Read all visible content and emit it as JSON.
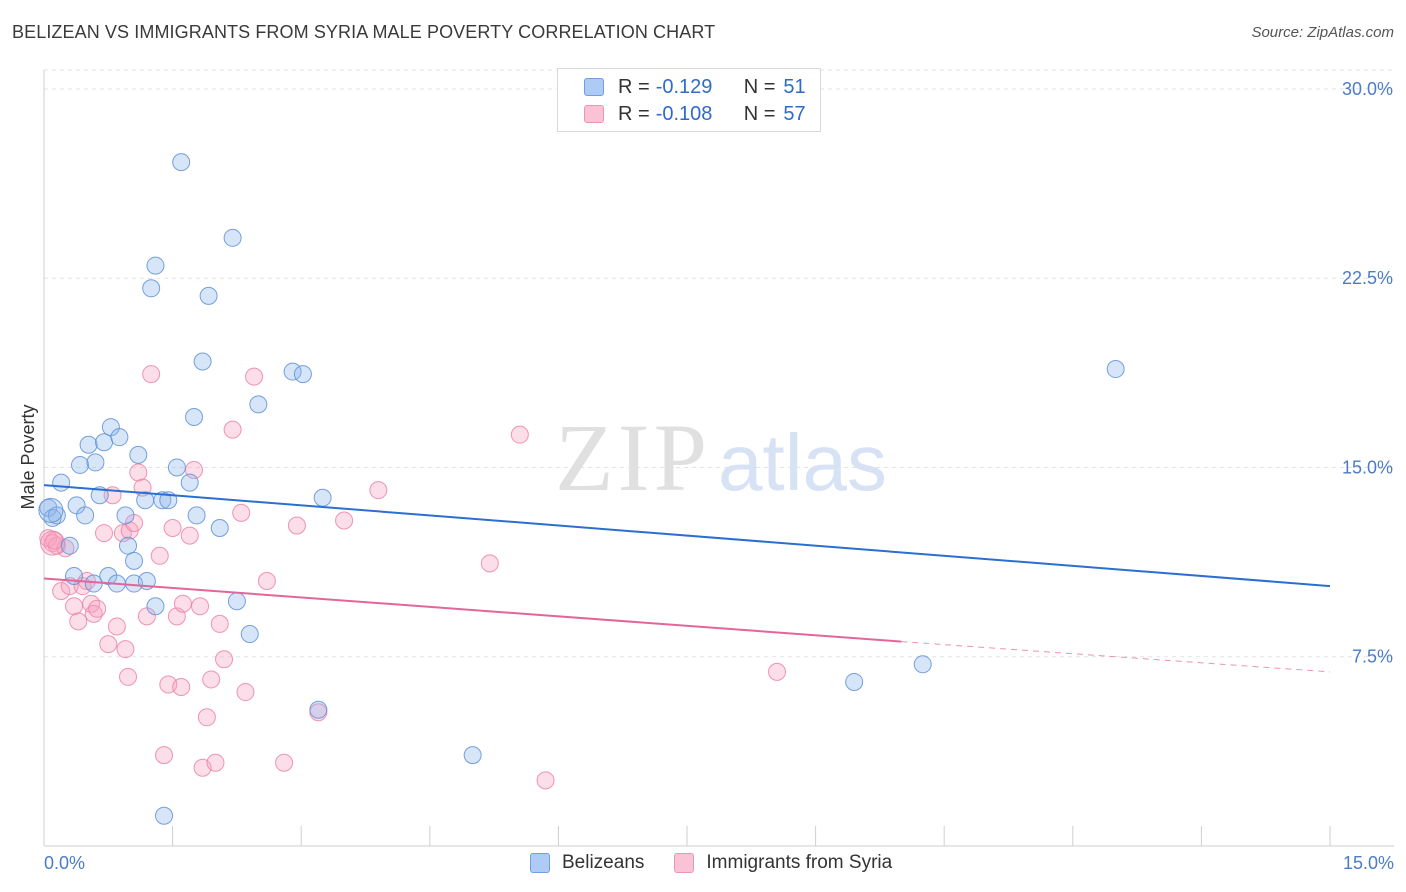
{
  "title": "BELIZEAN VS IMMIGRANTS FROM SYRIA MALE POVERTY CORRELATION CHART",
  "source": "Source: ZipAtlas.com",
  "watermark": {
    "zip": "ZIP",
    "atlas": "atlas"
  },
  "legend": {
    "r_label": "R =",
    "n_label": "N =",
    "rows": [
      {
        "r": "-0.129",
        "n": "51",
        "fill": "#aecbf5",
        "stroke": "#6f9fe0"
      },
      {
        "r": "-0.108",
        "n": "57",
        "fill": "#f9c3d5",
        "stroke": "#ee94b3"
      }
    ]
  },
  "bottom_legend": {
    "series1": "Belizeans",
    "series2": "Immigrants from Syria"
  },
  "chart_data": {
    "type": "scatter",
    "title": "BELIZEAN VS IMMIGRANTS FROM SYRIA MALE POVERTY CORRELATION CHART",
    "xlabel": "",
    "ylabel": "Male Poverty",
    "xlim": [
      0,
      15
    ],
    "ylim": [
      0,
      30.75
    ],
    "x_tick_labels": [
      "0.0%",
      "15.0%"
    ],
    "y_ticks": [
      7.5,
      15.0,
      22.5,
      30.0
    ],
    "y_tick_labels": [
      "7.5%",
      "15.0%",
      "22.5%",
      "30.0%"
    ],
    "colors": {
      "blue": "#5b93e0",
      "blue_line": "#2b6fd0",
      "pink": "#f29bbb",
      "pink_line": "#e2669a",
      "tick": "#4a7cc7"
    },
    "series": [
      {
        "name": "Belizeans",
        "trend": {
          "x0": 0.0,
          "y0": 14.3,
          "x1": 15.0,
          "y1": 10.3
        },
        "points": [
          [
            0.05,
            13.4
          ],
          [
            0.1,
            13.0
          ],
          [
            0.15,
            13.1
          ],
          [
            0.2,
            14.4
          ],
          [
            0.3,
            11.9
          ],
          [
            0.35,
            10.7
          ],
          [
            0.38,
            13.5
          ],
          [
            0.42,
            15.1
          ],
          [
            0.48,
            13.1
          ],
          [
            0.52,
            15.9
          ],
          [
            0.58,
            10.4
          ],
          [
            0.6,
            15.2
          ],
          [
            0.65,
            13.9
          ],
          [
            0.7,
            16.0
          ],
          [
            0.75,
            10.7
          ],
          [
            0.78,
            16.6
          ],
          [
            0.85,
            10.4
          ],
          [
            0.88,
            16.2
          ],
          [
            0.95,
            13.1
          ],
          [
            0.98,
            11.9
          ],
          [
            1.05,
            10.4
          ],
          [
            1.05,
            11.3
          ],
          [
            1.1,
            15.5
          ],
          [
            1.18,
            13.7
          ],
          [
            1.2,
            10.5
          ],
          [
            1.25,
            22.1
          ],
          [
            1.3,
            9.5
          ],
          [
            1.3,
            23.0
          ],
          [
            1.38,
            13.7
          ],
          [
            1.45,
            13.7
          ],
          [
            1.55,
            15.0
          ],
          [
            1.6,
            27.1
          ],
          [
            1.7,
            14.4
          ],
          [
            1.75,
            17.0
          ],
          [
            1.78,
            13.1
          ],
          [
            1.85,
            19.2
          ],
          [
            1.92,
            21.8
          ],
          [
            2.05,
            12.6
          ],
          [
            2.2,
            24.1
          ],
          [
            2.25,
            9.7
          ],
          [
            2.4,
            8.4
          ],
          [
            2.5,
            17.5
          ],
          [
            2.9,
            18.8
          ],
          [
            3.02,
            18.7
          ],
          [
            3.2,
            5.4
          ],
          [
            3.25,
            13.8
          ],
          [
            5.0,
            3.6
          ],
          [
            9.45,
            6.5
          ],
          [
            10.25,
            7.2
          ],
          [
            12.5,
            18.9
          ],
          [
            1.4,
            1.2
          ]
        ]
      },
      {
        "name": "Immigrants from Syria",
        "trend": {
          "x0": 0.0,
          "y0": 10.6,
          "x1": 10.0,
          "y1": 8.1,
          "dash_x1": 15.0,
          "dash_y1": 6.9
        },
        "points": [
          [
            0.05,
            12.2
          ],
          [
            0.1,
            12.0
          ],
          [
            0.15,
            11.9
          ],
          [
            0.2,
            10.1
          ],
          [
            0.25,
            11.8
          ],
          [
            0.3,
            10.3
          ],
          [
            0.35,
            9.5
          ],
          [
            0.4,
            8.9
          ],
          [
            0.45,
            10.3
          ],
          [
            0.5,
            10.5
          ],
          [
            0.55,
            9.6
          ],
          [
            0.58,
            9.2
          ],
          [
            0.62,
            9.4
          ],
          [
            0.7,
            12.4
          ],
          [
            0.75,
            8.0
          ],
          [
            0.8,
            13.9
          ],
          [
            0.85,
            8.7
          ],
          [
            0.92,
            12.4
          ],
          [
            0.95,
            7.8
          ],
          [
            0.98,
            6.7
          ],
          [
            1.0,
            12.5
          ],
          [
            1.05,
            12.8
          ],
          [
            1.1,
            14.8
          ],
          [
            1.15,
            14.2
          ],
          [
            1.2,
            9.1
          ],
          [
            1.25,
            18.7
          ],
          [
            1.35,
            11.5
          ],
          [
            1.4,
            3.6
          ],
          [
            1.45,
            6.4
          ],
          [
            1.5,
            12.6
          ],
          [
            1.55,
            9.1
          ],
          [
            1.6,
            6.3
          ],
          [
            1.62,
            9.6
          ],
          [
            1.7,
            12.3
          ],
          [
            1.75,
            14.9
          ],
          [
            1.82,
            9.5
          ],
          [
            1.85,
            3.1
          ],
          [
            1.9,
            5.1
          ],
          [
            1.95,
            6.6
          ],
          [
            2.0,
            3.3
          ],
          [
            2.05,
            8.8
          ],
          [
            2.1,
            7.4
          ],
          [
            2.2,
            16.5
          ],
          [
            2.3,
            13.2
          ],
          [
            2.35,
            6.1
          ],
          [
            2.45,
            18.6
          ],
          [
            2.6,
            10.5
          ],
          [
            2.8,
            3.3
          ],
          [
            2.95,
            12.7
          ],
          [
            3.2,
            5.3
          ],
          [
            3.5,
            12.9
          ],
          [
            3.9,
            14.1
          ],
          [
            5.2,
            11.2
          ],
          [
            5.55,
            16.3
          ],
          [
            5.85,
            2.6
          ],
          [
            8.55,
            6.9
          ],
          [
            0.12,
            12.1
          ]
        ]
      }
    ]
  }
}
